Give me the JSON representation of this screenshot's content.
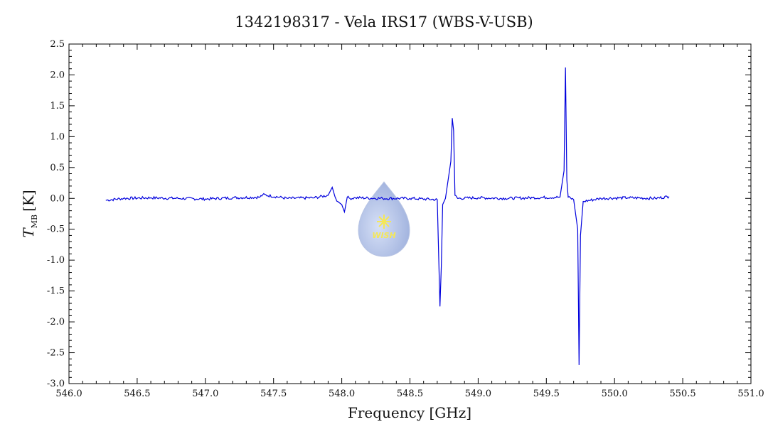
{
  "chart_data": {
    "type": "line",
    "title": "1342198317 - Vela IRS17 (WBS-V-USB)",
    "xlabel": "Frequency [GHz]",
    "ylabel_main": "T",
    "ylabel_sub": "MB",
    "ylabel_unit": "[K]",
    "xlim": [
      546.0,
      551.0
    ],
    "ylim": [
      -3.0,
      2.5
    ],
    "x_ticks": [
      "546.0",
      "546.5",
      "547.0",
      "547.5",
      "548.0",
      "548.5",
      "549.0",
      "549.5",
      "550.0",
      "550.5",
      "551.0"
    ],
    "y_ticks": [
      "2.5",
      "2.0",
      "1.5",
      "1.0",
      "0.5",
      "0.0",
      "-0.5",
      "-1.0",
      "-1.5",
      "-2.0",
      "-2.5",
      "-3.0"
    ],
    "grid": false,
    "series": [
      {
        "color": "#0000dd",
        "x": [
          546.27,
          546.4,
          546.6,
          546.8,
          547.0,
          547.2,
          547.4,
          547.42,
          547.6,
          547.8,
          547.9,
          547.93,
          547.95,
          547.97,
          548.0,
          548.02,
          548.04,
          548.06,
          548.1,
          548.3,
          548.5,
          548.7,
          548.72,
          548.73,
          548.74,
          548.76,
          548.8,
          548.81,
          548.82,
          548.83,
          548.85,
          549.0,
          549.2,
          549.4,
          549.6,
          549.63,
          549.64,
          549.65,
          549.66,
          549.7,
          549.73,
          549.74,
          549.75,
          549.77,
          549.9,
          550.1,
          550.3,
          550.4
        ],
        "y": [
          -0.03,
          0.0,
          0.01,
          0.0,
          -0.01,
          0.01,
          0.02,
          0.06,
          0.0,
          0.01,
          0.05,
          0.18,
          0.03,
          -0.05,
          -0.1,
          -0.22,
          0.02,
          0.0,
          0.01,
          0.0,
          0.0,
          -0.02,
          -1.75,
          -1.1,
          -0.1,
          0.0,
          0.6,
          1.3,
          1.1,
          0.05,
          0.0,
          0.01,
          0.0,
          0.01,
          0.02,
          0.45,
          2.12,
          0.3,
          0.02,
          -0.02,
          -0.5,
          -2.7,
          -0.6,
          -0.05,
          0.0,
          0.01,
          0.0,
          0.03
        ]
      }
    ]
  },
  "logo": {
    "text": "WISH",
    "fill": "#8fa6dc",
    "text_color": "#f2e020"
  }
}
